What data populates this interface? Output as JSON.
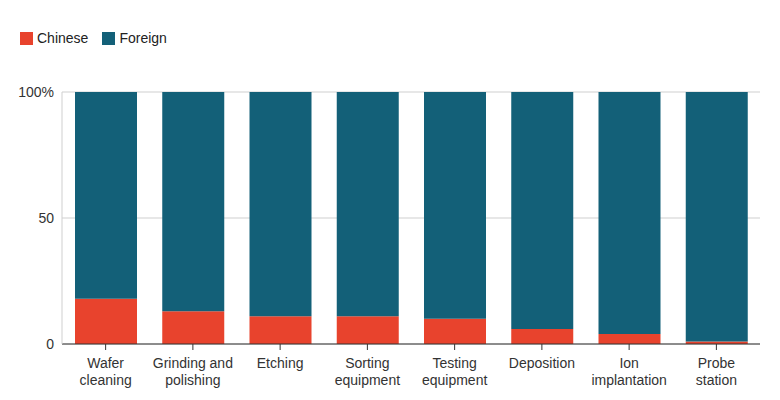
{
  "chart_data": {
    "type": "bar",
    "stacked": true,
    "grid": true,
    "legend": "top-left",
    "categories": [
      "Wafer cleaning",
      "Grinding and polishing",
      "Etching",
      "Sorting equipment",
      "Testing equipment",
      "Deposition",
      "Ion implantation",
      "Probe station"
    ],
    "series": [
      {
        "name": "Chinese",
        "color": "#e8432d",
        "values": [
          18,
          13,
          11,
          11,
          10,
          6,
          4,
          1
        ]
      },
      {
        "name": "Foreign",
        "color": "#136078",
        "values": [
          82,
          87,
          89,
          89,
          90,
          94,
          96,
          99
        ]
      }
    ],
    "ylim": [
      0,
      100
    ],
    "yticks": [
      0,
      50,
      {
        "value": 100,
        "label": "100%"
      }
    ]
  }
}
